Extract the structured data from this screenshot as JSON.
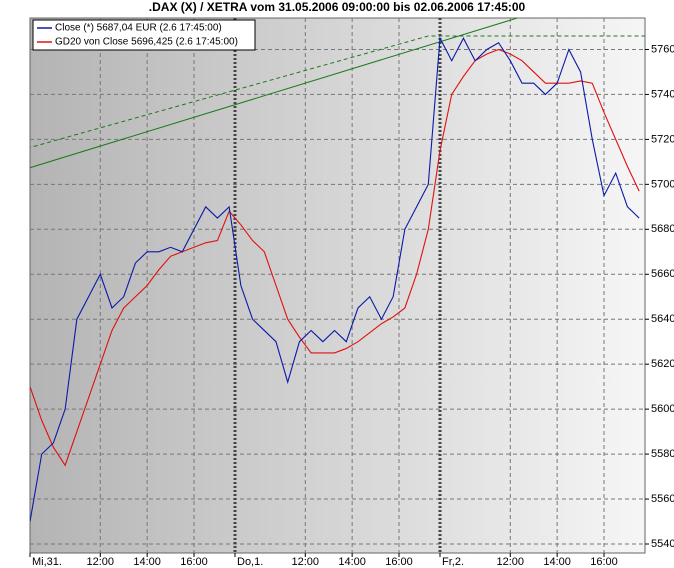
{
  "chart_data": {
    "type": "line",
    "title": ".DAX (X) / XETRA vom 31.05.2006 09:00:00 bis 02.06.2006 17:45:00",
    "x": [
      0,
      0.5,
      1,
      1.5,
      2,
      2.5,
      3,
      3.5,
      4,
      4.5,
      5,
      5.5,
      6,
      6.5,
      7,
      7.5,
      8,
      8.5,
      9,
      9.5,
      10,
      10.5,
      11,
      11.5,
      12,
      12.5,
      13,
      13.5,
      14,
      14.5,
      15,
      15.5,
      16,
      16.5,
      17,
      17.5,
      18,
      18.5,
      19,
      19.5,
      20,
      20.5,
      21,
      21.5,
      22,
      22.5,
      23,
      23.5,
      24,
      24.5,
      25,
      25.5,
      26
    ],
    "series": [
      {
        "name": "Close (*) 5687,04 EUR (2.6 17:45:00)",
        "color": "#0a1aa8",
        "values": [
          5550,
          5580,
          5585,
          5600,
          5640,
          5650,
          5660,
          5645,
          5650,
          5665,
          5670,
          5670,
          5672,
          5670,
          5680,
          5690,
          5685,
          5690,
          5655,
          5640,
          5635,
          5630,
          5612,
          5630,
          5635,
          5630,
          5635,
          5630,
          5645,
          5650,
          5640,
          5650,
          5680,
          5690,
          5700,
          5765,
          5755,
          5765,
          5755,
          5760,
          5763,
          5755,
          5745,
          5745,
          5740,
          5745,
          5760,
          5750,
          5720,
          5695,
          5705,
          5690,
          5685
        ]
      },
      {
        "name": "GD20 von Close 5696,425 (2.6 17:45:00)",
        "color": "#e01010",
        "values": [
          5610,
          5595,
          5583,
          5575,
          5590,
          5605,
          5620,
          5635,
          5645,
          5650,
          5655,
          5662,
          5668,
          5670,
          5672,
          5674,
          5675,
          5688,
          5682,
          5675,
          5670,
          5655,
          5640,
          5632,
          5625,
          5625,
          5625,
          5627,
          5630,
          5634,
          5638,
          5641,
          5645,
          5660,
          5680,
          5715,
          5740,
          5748,
          5755,
          5758,
          5760,
          5758,
          5755,
          5750,
          5745,
          5745,
          5745,
          5746,
          5745,
          5732,
          5720,
          5708,
          5697
        ]
      }
    ],
    "trendlines": [
      {
        "color": "#1a7a1a",
        "dash": false,
        "x": [
          -0.13,
          20.8
        ],
        "y": [
          5707,
          5774
        ]
      },
      {
        "color": "#1a7a1a",
        "dash": true,
        "x": [
          -0.13,
          17,
          26.25
        ],
        "y": [
          5716,
          5766,
          5766
        ]
      }
    ],
    "xlim": [
      0,
      26.25
    ],
    "xticks": [
      {
        "value": 0,
        "label": "Mi,31."
      },
      {
        "value": 3,
        "label": "12:00"
      },
      {
        "value": 5,
        "label": "14:00"
      },
      {
        "value": 7,
        "label": "16:00"
      },
      {
        "value": 8.75,
        "label": "Do,1."
      },
      {
        "value": 11.75,
        "label": "12:00"
      },
      {
        "value": 13.75,
        "label": "14:00"
      },
      {
        "value": 15.75,
        "label": "16:00"
      },
      {
        "value": 17.5,
        "label": "Fr,2."
      },
      {
        "value": 20.5,
        "label": "12:00"
      },
      {
        "value": 22.5,
        "label": "14:00"
      },
      {
        "value": 24.5,
        "label": "16:00"
      }
    ],
    "ylim": [
      5536,
      5774
    ],
    "yticks": [
      5540,
      5560,
      5580,
      5600,
      5620,
      5640,
      5660,
      5680,
      5700,
      5720,
      5740,
      5760
    ],
    "grid": true
  }
}
